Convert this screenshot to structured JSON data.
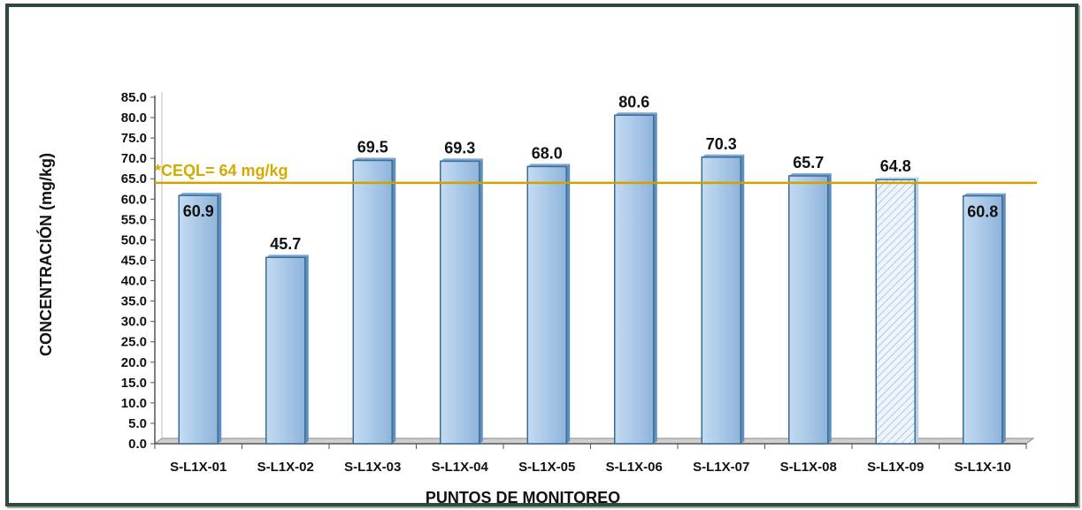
{
  "chart_data": {
    "type": "bar",
    "categories": [
      "S-L1X-01",
      "S-L1X-02",
      "S-L1X-03",
      "S-L1X-04",
      "S-L1X-05",
      "S-L1X-06",
      "S-L1X-07",
      "S-L1X-08",
      "S-L1X-09",
      "S-L1X-10"
    ],
    "values": [
      60.9,
      45.7,
      69.5,
      69.3,
      68.0,
      80.6,
      70.3,
      65.7,
      64.8,
      60.8
    ],
    "data_labels": [
      "60.9",
      "45.7",
      "69.5",
      "69.3",
      "68.0",
      "80.6",
      "70.3",
      "65.7",
      "64.8",
      "60.8"
    ],
    "hatched_categories": [
      "S-L1X-09"
    ],
    "xlabel": "PUNTOS DE MONITOREO",
    "ylabel": "CONCENTRACIÓN (mg/kg)",
    "ylim": [
      0,
      85
    ],
    "yticks": [
      "0.0",
      "5.0",
      "10.0",
      "15.0",
      "20.0",
      "25.0",
      "30.0",
      "35.0",
      "40.0",
      "45.0",
      "50.0",
      "55.0",
      "60.0",
      "65.0",
      "70.0",
      "75.0",
      "80.0",
      "85.0"
    ],
    "reference_line": {
      "value": 64,
      "label": "*CEQL=  64 mg/kg",
      "color": "#d4a000"
    },
    "bar_color": "#a9c8e8",
    "bar_edge_color": "#3a6d96",
    "grid": false,
    "legend": "none"
  }
}
